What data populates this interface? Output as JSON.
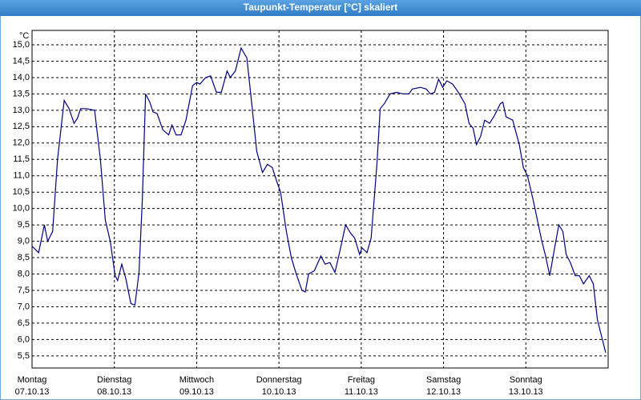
{
  "chart_data": {
    "type": "line",
    "title": "Taupunkt-Temperatur [°C] skaliert",
    "y_unit": "°C",
    "color": "#000080",
    "grid": true,
    "xlim": [
      0,
      7
    ],
    "ylim": [
      5.13,
      15.44
    ],
    "xticks": [
      {
        "value": 0,
        "label": "Montag",
        "date": "07.10.13"
      },
      {
        "value": 1,
        "label": "Dienstag",
        "date": "08.10.13"
      },
      {
        "value": 2,
        "label": "Mittwoch",
        "date": "09.10.13"
      },
      {
        "value": 3,
        "label": "Donnerstag",
        "date": "10.10.13"
      },
      {
        "value": 4,
        "label": "Freitag",
        "date": "11.10.13"
      },
      {
        "value": 5,
        "label": "Samstag",
        "date": "12.10.13"
      },
      {
        "value": 6,
        "label": "Sonntag",
        "date": "13.10.13"
      }
    ],
    "yticks": [
      {
        "value": 5.5,
        "label": "5,5"
      },
      {
        "value": 6,
        "label": "6,0"
      },
      {
        "value": 6.5,
        "label": "6,5"
      },
      {
        "value": 7,
        "label": "7,0"
      },
      {
        "value": 7.5,
        "label": "7,5"
      },
      {
        "value": 8,
        "label": "8,0"
      },
      {
        "value": 8.5,
        "label": "8,5"
      },
      {
        "value": 9,
        "label": "9,0"
      },
      {
        "value": 9.5,
        "label": "9,5"
      },
      {
        "value": 10,
        "label": "10,0"
      },
      {
        "value": 10.5,
        "label": "10,5"
      },
      {
        "value": 11,
        "label": "11,0"
      },
      {
        "value": 11.5,
        "label": "11,5"
      },
      {
        "value": 12,
        "label": "12,0"
      },
      {
        "value": 12.5,
        "label": "12,5"
      },
      {
        "value": 13,
        "label": "13,0"
      },
      {
        "value": 13.5,
        "label": "13,5"
      },
      {
        "value": 14,
        "label": "14,0"
      },
      {
        "value": 14.5,
        "label": "14,5"
      },
      {
        "value": 15,
        "label": "15,0"
      }
    ],
    "x": [
      0,
      0.08,
      0.15,
      0.19,
      0.25,
      0.31,
      0.39,
      0.45,
      0.51,
      0.55,
      0.59,
      0.66,
      0.76,
      0.83,
      0.89,
      0.95,
      1.01,
      1.04,
      1.09,
      1.14,
      1.2,
      1.25,
      1.3,
      1.34,
      1.38,
      1.43,
      1.47,
      1.52,
      1.59,
      1.66,
      1.7,
      1.75,
      1.81,
      1.87,
      1.95,
      2.0,
      2.04,
      2.11,
      2.17,
      2.24,
      2.3,
      2.37,
      2.41,
      2.47,
      2.54,
      2.61,
      2.67,
      2.73,
      2.8,
      2.86,
      2.92,
      2.97,
      3.02,
      3.09,
      3.15,
      3.21,
      3.28,
      3.32,
      3.36,
      3.43,
      3.51,
      3.56,
      3.62,
      3.68,
      3.74,
      3.81,
      3.87,
      3.92,
      3.98,
      4.01,
      4.07,
      4.12,
      4.19,
      4.23,
      4.28,
      4.35,
      4.43,
      4.51,
      4.58,
      4.62,
      4.72,
      4.79,
      4.84,
      4.89,
      4.94,
      4.99,
      5.04,
      5.11,
      5.18,
      5.26,
      5.31,
      5.36,
      5.4,
      5.45,
      5.5,
      5.56,
      5.62,
      5.69,
      5.72,
      5.76,
      5.84,
      5.92,
      5.97,
      6.02,
      6.09,
      6.19,
      6.24,
      6.29,
      6.35,
      6.4,
      6.45,
      6.49,
      6.54,
      6.6,
      6.65,
      6.7,
      6.77,
      6.82,
      6.87,
      6.93,
      6.97
    ],
    "values": [
      8.85,
      8.65,
      9.5,
      9.0,
      9.3,
      11.5,
      13.3,
      13.05,
      12.6,
      12.75,
      13.05,
      13.05,
      13.0,
      11.5,
      9.65,
      9.0,
      7.95,
      7.8,
      8.3,
      7.85,
      7.1,
      7.05,
      8.05,
      10.25,
      13.5,
      13.25,
      12.95,
      12.9,
      12.4,
      12.25,
      12.55,
      12.25,
      12.25,
      12.7,
      13.75,
      13.85,
      13.8,
      14.0,
      14.05,
      13.55,
      13.55,
      14.2,
      14.0,
      14.2,
      14.9,
      14.6,
      13.2,
      11.75,
      11.1,
      11.35,
      11.25,
      10.85,
      10.5,
      9.3,
      8.5,
      8.0,
      7.5,
      7.45,
      8.0,
      8.1,
      8.55,
      8.3,
      8.35,
      8.05,
      8.7,
      9.5,
      9.25,
      9.1,
      8.6,
      8.8,
      8.65,
      9.1,
      11.35,
      13.05,
      13.2,
      13.5,
      13.55,
      13.5,
      13.5,
      13.65,
      13.7,
      13.65,
      13.5,
      13.55,
      13.95,
      13.7,
      13.9,
      13.8,
      13.55,
      13.2,
      12.6,
      12.45,
      11.95,
      12.2,
      12.7,
      12.6,
      12.85,
      13.2,
      13.25,
      12.8,
      12.7,
      11.95,
      11.25,
      11.0,
      10.25,
      9.05,
      8.55,
      7.95,
      8.8,
      9.5,
      9.3,
      8.6,
      8.35,
      7.95,
      7.95,
      7.7,
      7.95,
      7.7,
      6.6,
      6.0,
      5.6
    ]
  }
}
